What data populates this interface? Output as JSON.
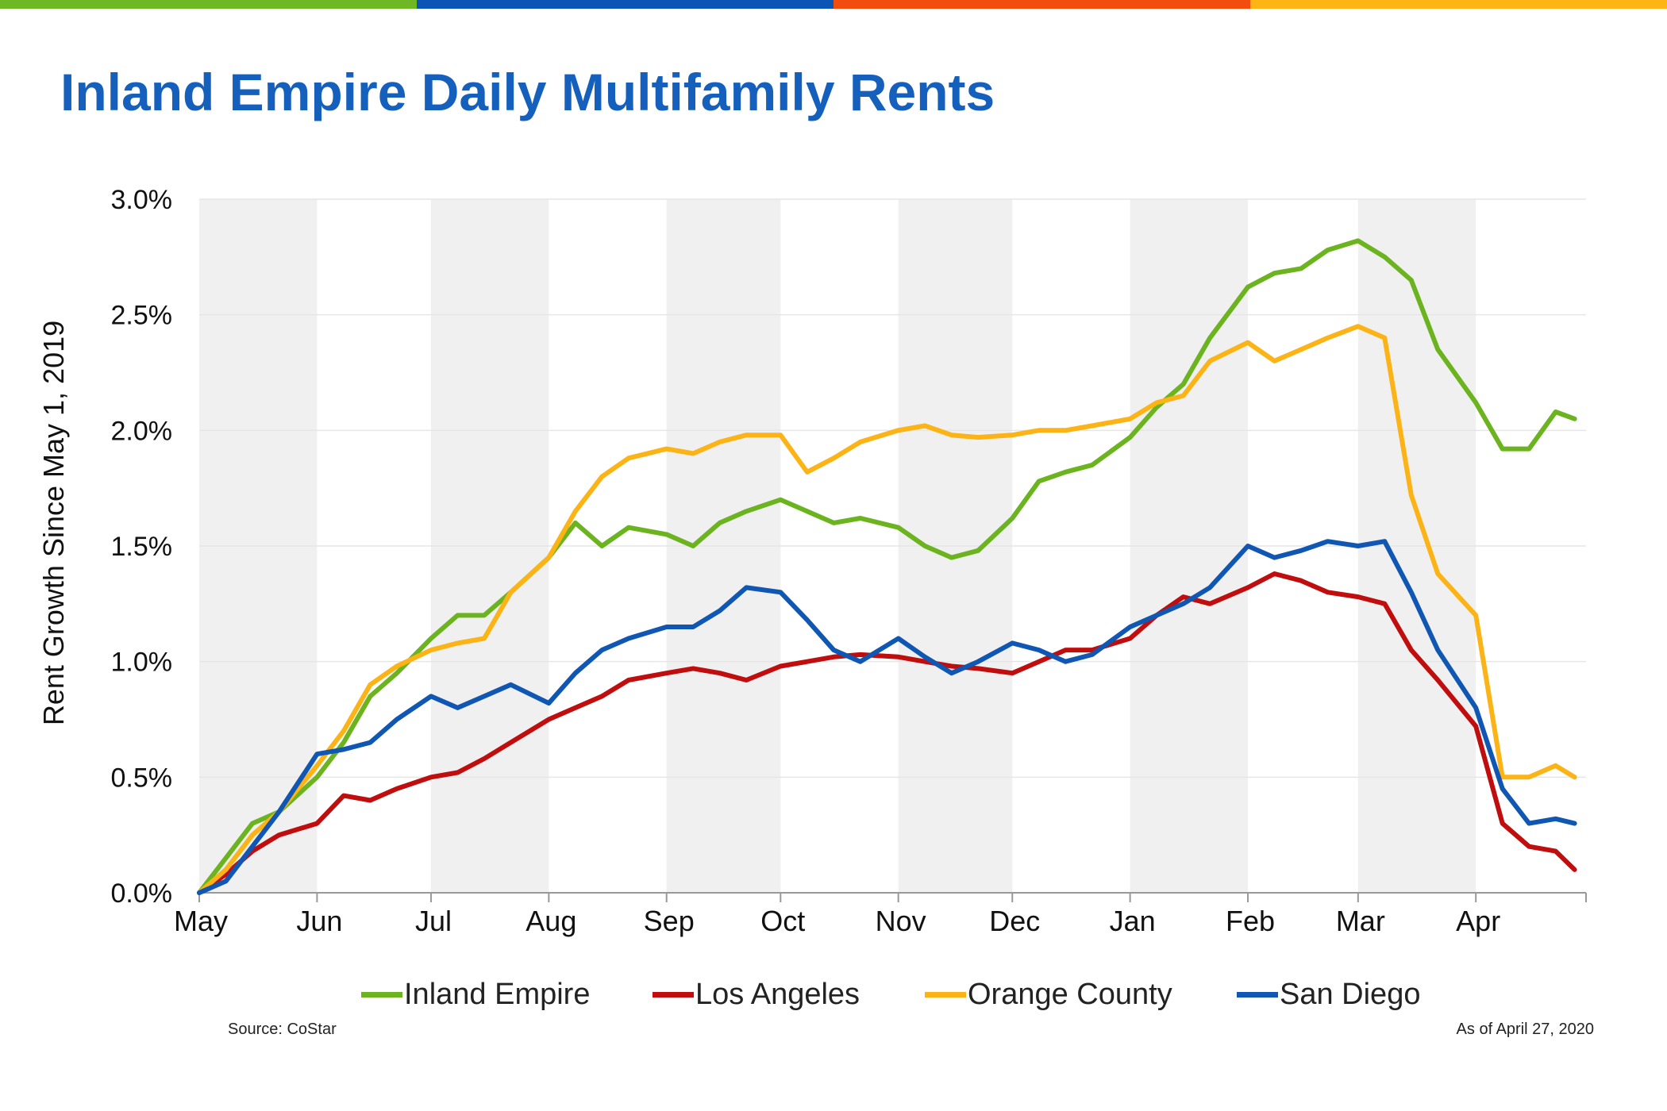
{
  "title": "Inland Empire Daily Multifamily Rents",
  "top_bar_colors": [
    "#6eb824",
    "#0b56b5",
    "#f24d0f",
    "#fdb515"
  ],
  "source": "Source: CoStar",
  "as_of": "As of April 27, 2020",
  "chart_data": {
    "type": "line",
    "title": "Inland Empire Daily Multifamily Rents",
    "xlabel": "",
    "ylabel": "Rent Growth Since May 1, 2019",
    "ylim": [
      0,
      3.0
    ],
    "y_ticks": [
      "0.0%",
      "0.5%",
      "1.0%",
      "1.5%",
      "2.0%",
      "2.5%",
      "3.0%"
    ],
    "x_ticks": [
      "May",
      "Jun",
      "Jul",
      "Aug",
      "Sep",
      "Oct",
      "Nov",
      "Dec",
      "Jan",
      "Feb",
      "Mar",
      "Apr"
    ],
    "x_units": "date",
    "shaded_months": [
      "May",
      "Jul",
      "Sep",
      "Nov",
      "Jan",
      "Mar"
    ],
    "grid": true,
    "legend_position": "bottom",
    "series": [
      {
        "name": "Inland Empire",
        "color": "#6cb41f",
        "x": [
          "2019-05-01",
          "2019-05-08",
          "2019-05-15",
          "2019-05-22",
          "2019-06-01",
          "2019-06-08",
          "2019-06-15",
          "2019-06-22",
          "2019-07-01",
          "2019-07-08",
          "2019-07-15",
          "2019-07-22",
          "2019-08-01",
          "2019-08-08",
          "2019-08-15",
          "2019-08-22",
          "2019-09-01",
          "2019-09-08",
          "2019-09-15",
          "2019-09-22",
          "2019-10-01",
          "2019-10-08",
          "2019-10-15",
          "2019-10-22",
          "2019-11-01",
          "2019-11-08",
          "2019-11-15",
          "2019-11-22",
          "2019-12-01",
          "2019-12-08",
          "2019-12-15",
          "2019-12-22",
          "2020-01-01",
          "2020-01-08",
          "2020-01-15",
          "2020-01-22",
          "2020-02-01",
          "2020-02-08",
          "2020-02-15",
          "2020-02-22",
          "2020-03-01",
          "2020-03-08",
          "2020-03-15",
          "2020-03-22",
          "2020-04-01",
          "2020-04-08",
          "2020-04-15",
          "2020-04-22",
          "2020-04-27"
        ],
        "values": [
          0.0,
          0.15,
          0.3,
          0.35,
          0.5,
          0.65,
          0.85,
          0.95,
          1.1,
          1.2,
          1.2,
          1.3,
          1.45,
          1.6,
          1.5,
          1.58,
          1.55,
          1.5,
          1.6,
          1.65,
          1.7,
          1.65,
          1.6,
          1.62,
          1.58,
          1.5,
          1.45,
          1.48,
          1.62,
          1.78,
          1.82,
          1.85,
          1.97,
          2.1,
          2.2,
          2.4,
          2.62,
          2.68,
          2.7,
          2.78,
          2.82,
          2.75,
          2.65,
          2.35,
          2.12,
          1.92,
          1.92,
          2.08,
          2.05
        ]
      },
      {
        "name": "Los Angeles",
        "color": "#c00d0d",
        "x": [
          "2019-05-01",
          "2019-05-08",
          "2019-05-15",
          "2019-05-22",
          "2019-06-01",
          "2019-06-08",
          "2019-06-15",
          "2019-06-22",
          "2019-07-01",
          "2019-07-08",
          "2019-07-15",
          "2019-07-22",
          "2019-08-01",
          "2019-08-08",
          "2019-08-15",
          "2019-08-22",
          "2019-09-01",
          "2019-09-08",
          "2019-09-15",
          "2019-09-22",
          "2019-10-01",
          "2019-10-08",
          "2019-10-15",
          "2019-10-22",
          "2019-11-01",
          "2019-11-08",
          "2019-11-15",
          "2019-11-22",
          "2019-12-01",
          "2019-12-08",
          "2019-12-15",
          "2019-12-22",
          "2020-01-01",
          "2020-01-08",
          "2020-01-15",
          "2020-01-22",
          "2020-02-01",
          "2020-02-08",
          "2020-02-15",
          "2020-02-22",
          "2020-03-01",
          "2020-03-08",
          "2020-03-15",
          "2020-03-22",
          "2020-04-01",
          "2020-04-08",
          "2020-04-15",
          "2020-04-22",
          "2020-04-27"
        ],
        "values": [
          0.0,
          0.08,
          0.18,
          0.25,
          0.3,
          0.42,
          0.4,
          0.45,
          0.5,
          0.52,
          0.58,
          0.65,
          0.75,
          0.8,
          0.85,
          0.92,
          0.95,
          0.97,
          0.95,
          0.92,
          0.98,
          1.0,
          1.02,
          1.03,
          1.02,
          1.0,
          0.98,
          0.97,
          0.95,
          1.0,
          1.05,
          1.05,
          1.1,
          1.2,
          1.28,
          1.25,
          1.32,
          1.38,
          1.35,
          1.3,
          1.28,
          1.25,
          1.05,
          0.92,
          0.72,
          0.3,
          0.2,
          0.18,
          0.1
        ]
      },
      {
        "name": "Orange County",
        "color": "#fbb316",
        "x": [
          "2019-05-01",
          "2019-05-08",
          "2019-05-15",
          "2019-05-22",
          "2019-06-01",
          "2019-06-08",
          "2019-06-15",
          "2019-06-22",
          "2019-07-01",
          "2019-07-08",
          "2019-07-15",
          "2019-07-22",
          "2019-08-01",
          "2019-08-08",
          "2019-08-15",
          "2019-08-22",
          "2019-09-01",
          "2019-09-08",
          "2019-09-15",
          "2019-09-22",
          "2019-10-01",
          "2019-10-08",
          "2019-10-15",
          "2019-10-22",
          "2019-11-01",
          "2019-11-08",
          "2019-11-15",
          "2019-11-22",
          "2019-12-01",
          "2019-12-08",
          "2019-12-15",
          "2019-12-22",
          "2020-01-01",
          "2020-01-08",
          "2020-01-15",
          "2020-01-22",
          "2020-02-01",
          "2020-02-08",
          "2020-02-15",
          "2020-02-22",
          "2020-03-01",
          "2020-03-08",
          "2020-03-15",
          "2020-03-22",
          "2020-04-01",
          "2020-04-08",
          "2020-04-15",
          "2020-04-22",
          "2020-04-27"
        ],
        "values": [
          0.0,
          0.1,
          0.25,
          0.35,
          0.55,
          0.7,
          0.9,
          0.98,
          1.05,
          1.08,
          1.1,
          1.3,
          1.45,
          1.65,
          1.8,
          1.88,
          1.92,
          1.9,
          1.95,
          1.98,
          1.98,
          1.82,
          1.88,
          1.95,
          2.0,
          2.02,
          1.98,
          1.97,
          1.98,
          2.0,
          2.0,
          2.02,
          2.05,
          2.12,
          2.15,
          2.3,
          2.38,
          2.3,
          2.35,
          2.4,
          2.45,
          2.4,
          1.72,
          1.38,
          1.2,
          0.5,
          0.5,
          0.55,
          0.5
        ]
      },
      {
        "name": "San Diego",
        "color": "#0f57b3",
        "x": [
          "2019-05-01",
          "2019-05-08",
          "2019-05-15",
          "2019-05-22",
          "2019-06-01",
          "2019-06-08",
          "2019-06-15",
          "2019-06-22",
          "2019-07-01",
          "2019-07-08",
          "2019-07-15",
          "2019-07-22",
          "2019-08-01",
          "2019-08-08",
          "2019-08-15",
          "2019-08-22",
          "2019-09-01",
          "2019-09-08",
          "2019-09-15",
          "2019-09-22",
          "2019-10-01",
          "2019-10-08",
          "2019-10-15",
          "2019-10-22",
          "2019-11-01",
          "2019-11-08",
          "2019-11-15",
          "2019-11-22",
          "2019-12-01",
          "2019-12-08",
          "2019-12-15",
          "2019-12-22",
          "2020-01-01",
          "2020-01-08",
          "2020-01-15",
          "2020-01-22",
          "2020-02-01",
          "2020-02-08",
          "2020-02-15",
          "2020-02-22",
          "2020-03-01",
          "2020-03-08",
          "2020-03-15",
          "2020-03-22",
          "2020-04-01",
          "2020-04-08",
          "2020-04-15",
          "2020-04-22",
          "2020-04-27"
        ],
        "values": [
          0.0,
          0.05,
          0.2,
          0.35,
          0.6,
          0.62,
          0.65,
          0.75,
          0.85,
          0.8,
          0.85,
          0.9,
          0.82,
          0.95,
          1.05,
          1.1,
          1.15,
          1.15,
          1.22,
          1.32,
          1.3,
          1.18,
          1.05,
          1.0,
          1.1,
          1.02,
          0.95,
          1.0,
          1.08,
          1.05,
          1.0,
          1.03,
          1.15,
          1.2,
          1.25,
          1.32,
          1.5,
          1.45,
          1.48,
          1.52,
          1.5,
          1.52,
          1.3,
          1.05,
          0.8,
          0.45,
          0.3,
          0.32,
          0.3
        ]
      }
    ]
  }
}
